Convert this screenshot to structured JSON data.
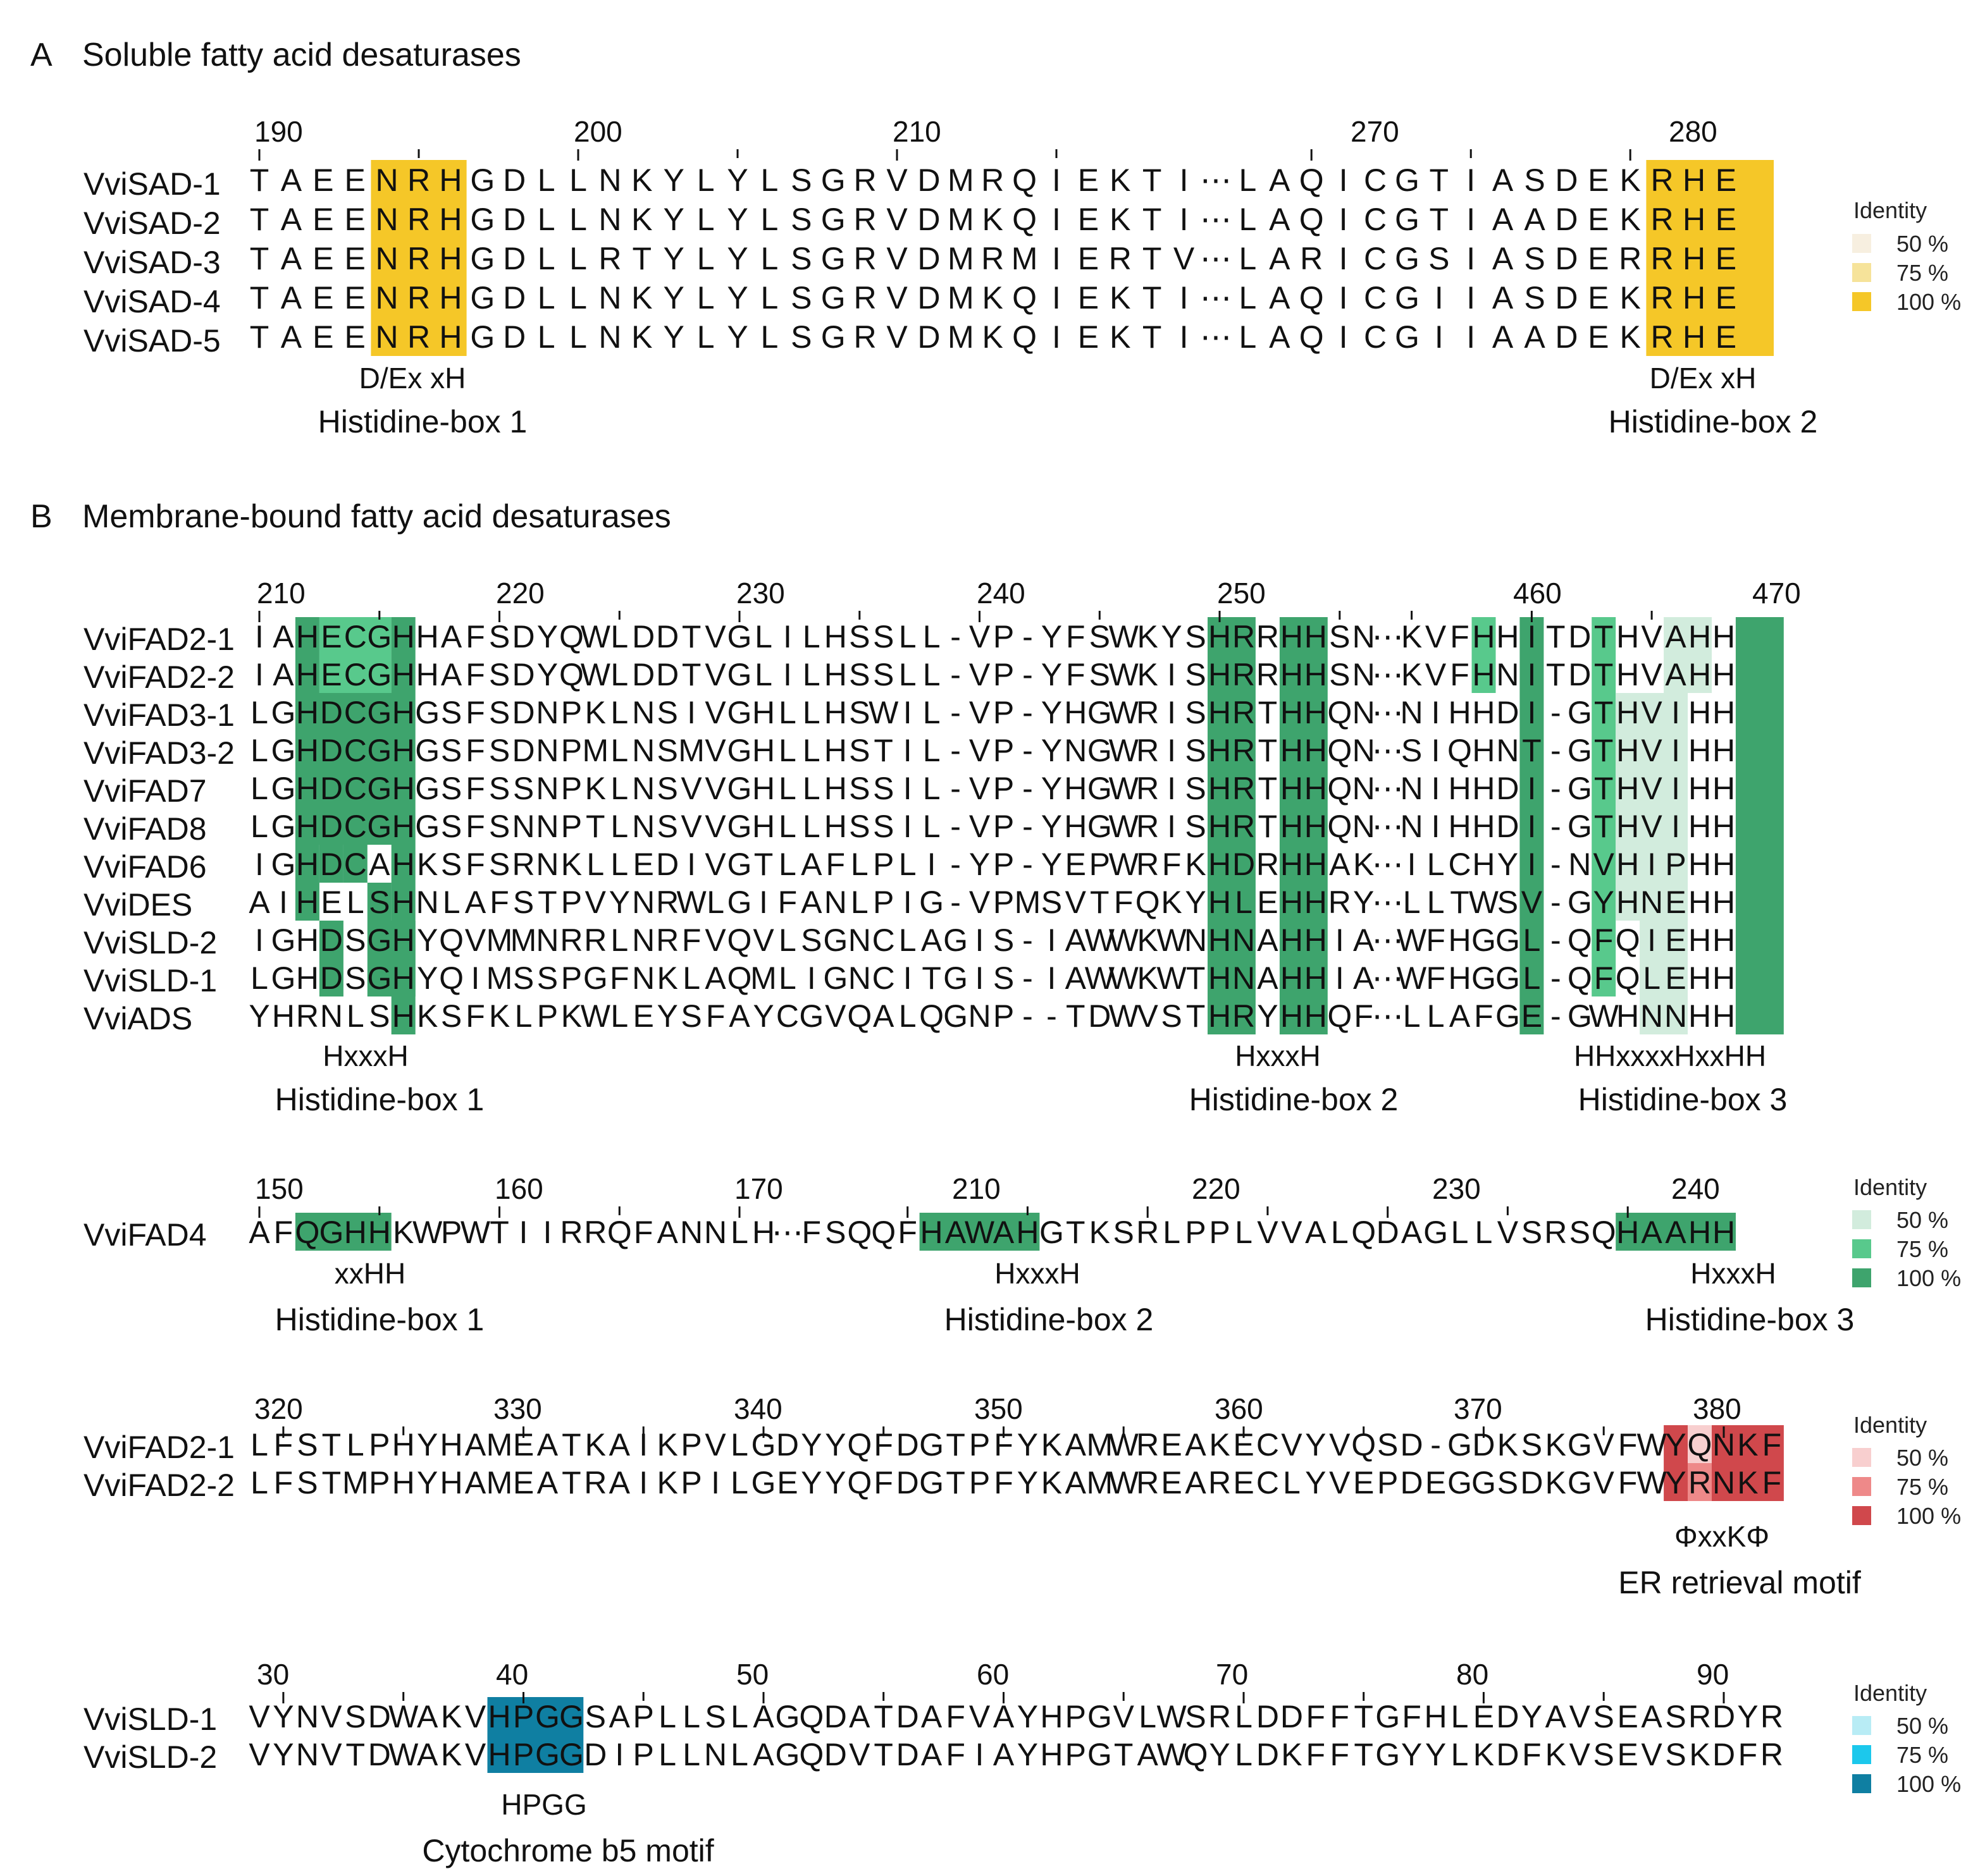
{
  "colors": {
    "yellow": [
      "#f7efe0",
      "#f6e39a",
      "#f5c728"
    ],
    "green": [
      "#d2ecdd",
      "#58c98c",
      "#3ea46d"
    ],
    "red": [
      "#f8cfcf",
      "#ee8989",
      "#d0484c"
    ],
    "blue": [
      "#b8ecf5",
      "#1cc8ec",
      "#0f7fa2"
    ]
  },
  "panels": [
    {
      "id": "A",
      "section_letter": "A",
      "section_title": "Soluble fatty acid desaturases",
      "start_number": 190,
      "gap_number": 268,
      "gap_after": 25,
      "tick_labels": [
        "190",
        "200",
        "210",
        "270",
        "280"
      ],
      "rows": [
        {
          "name": "VviSAD-1",
          "seq": "TAEENRHGDLLNKYLYLSGRVDMRQIEKTI⋯LAQICGTIASDEKRHE"
        },
        {
          "name": "VviSAD-2",
          "seq": "TAEENRHGDLLNKYLYLSGRVDMKQIEKTI⋯LAQICGTIAADEKRHE"
        },
        {
          "name": "VviSAD-3",
          "seq": "TAEENRHGDLLRTYLYLSGRVDMRMIERTV⋯LARICGSIASDERRHE"
        },
        {
          "name": "VviSAD-4",
          "seq": "TAEENRHGDLLNKYLYLSGRVDMKQIEKTI⋯LAQICGIIASDEKRHE"
        },
        {
          "name": "VviSAD-5",
          "seq": "TAEENRHGDLLNKYLYLSGRVDMKQIEKTI⋯LAQICGIIAADEKRHE"
        }
      ],
      "motifs": [
        {
          "pattern": "D/Ex xH",
          "label": "Histidine-box 1"
        },
        {
          "pattern": "D/Ex xH",
          "label": "Histidine-box 2"
        }
      ],
      "legend": {
        "title": "Identity",
        "items": [
          "50 %",
          "75 %",
          "100 %"
        ]
      }
    },
    {
      "id": "B1",
      "section_letter": "B",
      "section_title": "Membrane-bound fatty acid desaturases",
      "start_number": 210,
      "gap_number": 455,
      "gap_after": 48,
      "tick_labels": [
        "210",
        "220",
        "230",
        "240",
        "250",
        "460",
        "470"
      ],
      "rows": [
        {
          "name": "VviFAD2-1",
          "seq": "IAHECGHHAFSDYQWLDDTVGLILHSSLL-VP-YFSWKYSHRRHHSN⋯KVFHHITDTHVAHH"
        },
        {
          "name": "VviFAD2-2",
          "seq": "IAHECGHHAFSDYQWLDDTVGLILHSSLL-VP-YFSWKISHRRHHSN⋯KVFHNITDTHVAHH"
        },
        {
          "name": "VviFAD3-1",
          "seq": "LGHDCGHGSFSDNPKLNSIVGHLLHSWIL-VP-YHGWRISHRTHHQN⋯NIHHDI-GTHVIHH"
        },
        {
          "name": "VviFAD3-2",
          "seq": "LGHDCGHGSFSDNPMLNSMVGHLLHSTIL-VP-YNGWRISHRTHHQN⋯SIQHNT-GTHVIHH"
        },
        {
          "name": "VviFAD7",
          "seq": "LGHDCGHGSFSSNPKLNSVVGHLLHSSIL-VP-YHGWRISHRTHHQN⋯NIHHDI-GTHVIHH"
        },
        {
          "name": "VviFAD8",
          "seq": "LGHDCGHGSFSNNPTLNSVVGHLLHSSIL-VP-YHGWRISHRTHHQN⋯NIHHDI-GTHVIHH"
        },
        {
          "name": "VviFAD6",
          "seq": "IGHDCAHKSFSRNKLLEDIVGTLAFLPLI-YP-YEPWRFKHDRHHAK⋯ILCHYI-NVHIPHH"
        },
        {
          "name": "VviDES",
          "seq": "AIHELSHNLAFSTPVYNRWLGIFANLPIG-VPMSVTFQKYHLEHHRY⋯LLTWSV-GYHNEHH"
        },
        {
          "name": "VviSLD-2",
          "seq": "IGHDSGHYQVMMNRRLNRFVQVLSGNCLAGIS-IAWWKWNHNAHHIA⋯WFHGGL-QFQIEHH"
        },
        {
          "name": "VviSLD-1",
          "seq": "LGHDSGHYQIMSSPGFNKLAQMLIGNCITGIS-IAWWKWTHNAHHIA⋯WFHGGL-QFQLEHH"
        },
        {
          "name": "VviADS",
          "seq": "YHRNLSHKSFKLPKWLEYSFAYCGVQALQGNP--TDWVSTHRYHHQF⋯LLAFGE-GWHNNHH"
        }
      ],
      "motifs": [
        {
          "pattern": "HxxxH",
          "label": "Histidine-box 1"
        },
        {
          "pattern": "HxxxH",
          "label": "Histidine-box 2"
        },
        {
          "pattern": "HHxxxxHxxHH",
          "label": "Histidine-box 3"
        }
      ],
      "legend": null
    },
    {
      "id": "B2",
      "start_number": 150,
      "gap_number": 206,
      "gap_after": 18,
      "tick_labels": [
        "150",
        "160",
        "170",
        "210",
        "220",
        "230",
        "240"
      ],
      "rows": [
        {
          "name": "VviFAD4",
          "seq": "AFQGHHKWPWTIIRRQFANNLH⋯FSQQFHAWAHGTKSRLPPLVVALQDAGLLVSRSQHAAHH"
        }
      ],
      "motifs": [
        {
          "pattern": "xxHH",
          "label": "Histidine-box 1"
        },
        {
          "pattern": "HxxxH",
          "label": "Histidine-box 2"
        },
        {
          "pattern": "HxxxH",
          "label": "Histidine-box 3"
        }
      ],
      "legend": {
        "title": "Identity",
        "items": [
          "50 %",
          "75 %",
          "100 %"
        ]
      }
    },
    {
      "id": "B3",
      "start_number": 319,
      "tick_labels": [
        "320",
        "330",
        "340",
        "350",
        "360",
        "370",
        "380"
      ],
      "rows": [
        {
          "name": "VviFAD2-1",
          "seq": "LFSTLPHYHAMEATKAIKPVLGDYYQFDGTPFYKAMWREAKECVYVQSD-GDKSKGVFWYQNKF"
        },
        {
          "name": "VviFAD2-2",
          "seq": "LFSTMPHYHAMEATRAIKPILGEYYQFDGTPFYKAMWREARECLYVEPDEGGSDKGVFWYRNKF"
        }
      ],
      "motifs": [
        {
          "pattern": "ΦxxKΦ",
          "label": "ER retrieval motif"
        }
      ],
      "legend": {
        "title": "Identity",
        "items": [
          "50 %",
          "75 %",
          "100 %"
        ]
      }
    },
    {
      "id": "B4",
      "start_number": 29,
      "tick_labels": [
        "30",
        "40",
        "50",
        "60",
        "70",
        "80",
        "90"
      ],
      "rows": [
        {
          "name": "VviSLD-1",
          "seq": "VYNVSDWAKVHPGGSAPLLSLAGQDATDAFVAYHPGVLWSRLDDFFTGFHLEDYAVSEASRDYR"
        },
        {
          "name": "VviSLD-2",
          "seq": "VYNVTDWAKVHPGGDIPLLNLAGQDVTDAFIAYHPGTAWQYLDKFFTGYYLKDFKVSEVSKDFR"
        }
      ],
      "motifs": [
        {
          "pattern": "HPGG",
          "label": "Cytochrome b5 motif"
        }
      ],
      "legend": {
        "title": "Identity",
        "items": [
          "50 %",
          "75 %",
          "100 %"
        ]
      }
    }
  ]
}
